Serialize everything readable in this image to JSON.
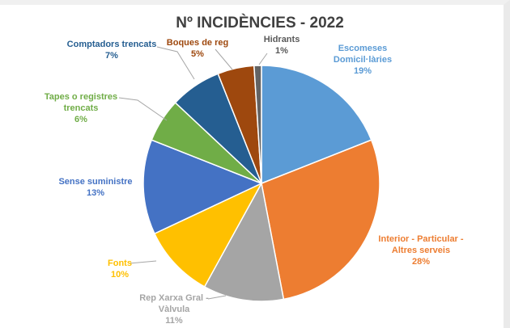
{
  "chart_data": {
    "type": "pie",
    "title": "Nº INCIDÈNCIES - 2022",
    "slices": [
      {
        "label_lines": [
          "Escomeses",
          "Domicil·làries"
        ],
        "pct_text": "19%",
        "value": 19,
        "color": "#5b9bd5",
        "label_color": "#5b9bd5"
      },
      {
        "label_lines": [
          "Interior - Particular -",
          "Altres serveis"
        ],
        "pct_text": "28%",
        "value": 28,
        "color": "#ed7d31",
        "label_color": "#ed7d31"
      },
      {
        "label_lines": [
          "Rep Xarxa Gral -",
          "Vàlvula"
        ],
        "pct_text": "11%",
        "value": 11,
        "color": "#a5a5a5",
        "label_color": "#a5a5a5"
      },
      {
        "label_lines": [
          "Fonts"
        ],
        "pct_text": "10%",
        "value": 10,
        "color": "#ffc000",
        "label_color": "#ffc000"
      },
      {
        "label_lines": [
          "Sense suministre"
        ],
        "pct_text": "13%",
        "value": 13,
        "color": "#4472c4",
        "label_color": "#4472c4"
      },
      {
        "label_lines": [
          "Tapes o registres",
          "trencats"
        ],
        "pct_text": "6%",
        "value": 6,
        "color": "#70ad47",
        "label_color": "#70ad47"
      },
      {
        "label_lines": [
          "Comptadors trencats"
        ],
        "pct_text": "7%",
        "value": 7,
        "color": "#255e91",
        "label_color": "#255e91"
      },
      {
        "label_lines": [
          "Boques de reg"
        ],
        "pct_text": "5%",
        "value": 5,
        "color": "#9e480e",
        "label_color": "#9e480e"
      },
      {
        "label_lines": [
          "Hidrants"
        ],
        "pct_text": "1%",
        "value": 1,
        "color": "#636363",
        "label_color": "#595959"
      }
    ]
  }
}
